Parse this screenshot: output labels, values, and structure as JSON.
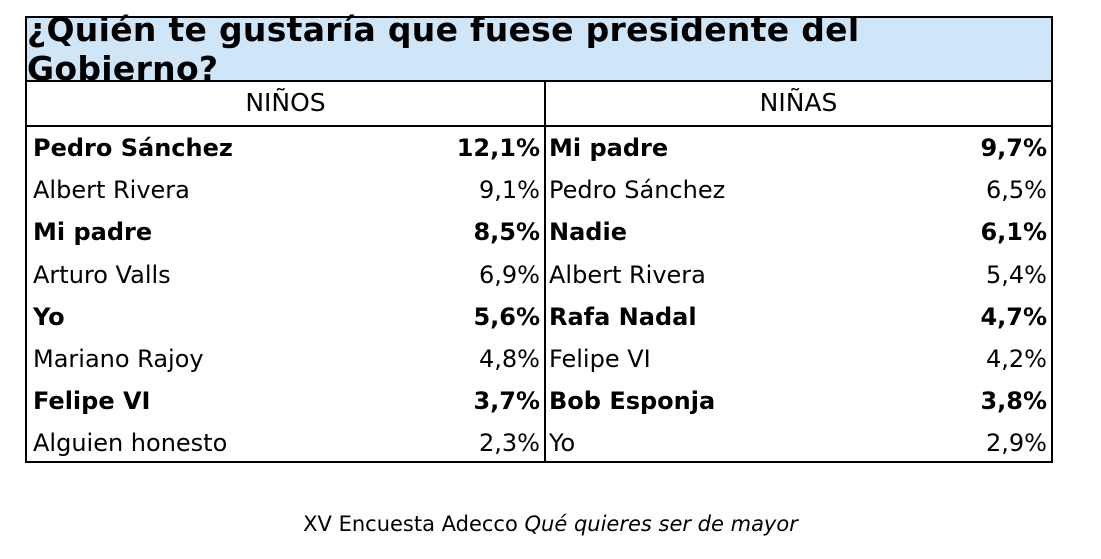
{
  "title": "¿Quién te gustaría que fuese presidente del Gobierno?",
  "colors": {
    "header_background": "#cfe6f8",
    "border": "#000000"
  },
  "chart_data": {
    "type": "table",
    "title": "¿Quién te gustaría que fuese presidente del Gobierno?",
    "columns": [
      {
        "header": "NIÑOS",
        "rows": [
          {
            "name": "Pedro Sánchez",
            "value": "12,1%",
            "bold": true
          },
          {
            "name": "Albert Rivera",
            "value": "9,1%",
            "bold": false
          },
          {
            "name": "Mi padre",
            "value": "8,5%",
            "bold": true
          },
          {
            "name": "Arturo Valls",
            "value": "6,9%",
            "bold": false
          },
          {
            "name": "Yo",
            "value": "5,6%",
            "bold": true
          },
          {
            "name": "Mariano Rajoy",
            "value": "4,8%",
            "bold": false
          },
          {
            "name": "Felipe VI",
            "value": "3,7%",
            "bold": true
          },
          {
            "name": "Alguien honesto",
            "value": "2,3%",
            "bold": false
          }
        ]
      },
      {
        "header": "NIÑAS",
        "rows": [
          {
            "name": "Mi padre",
            "value": "9,7%",
            "bold": true
          },
          {
            "name": "Pedro Sánchez",
            "value": "6,5%",
            "bold": false
          },
          {
            "name": "Nadie",
            "value": "6,1%",
            "bold": true
          },
          {
            "name": "Albert Rivera",
            "value": "5,4%",
            "bold": false
          },
          {
            "name": "Rafa Nadal",
            "value": "4,7%",
            "bold": true
          },
          {
            "name": "Felipe VI",
            "value": "4,2%",
            "bold": false
          },
          {
            "name": "Bob Esponja",
            "value": "3,8%",
            "bold": true
          },
          {
            "name": "Yo",
            "value": "2,9%",
            "bold": false
          }
        ]
      }
    ]
  },
  "footer": {
    "text": "XV Encuesta Adecco",
    "italic_text": "Qué quieres ser de mayor"
  }
}
